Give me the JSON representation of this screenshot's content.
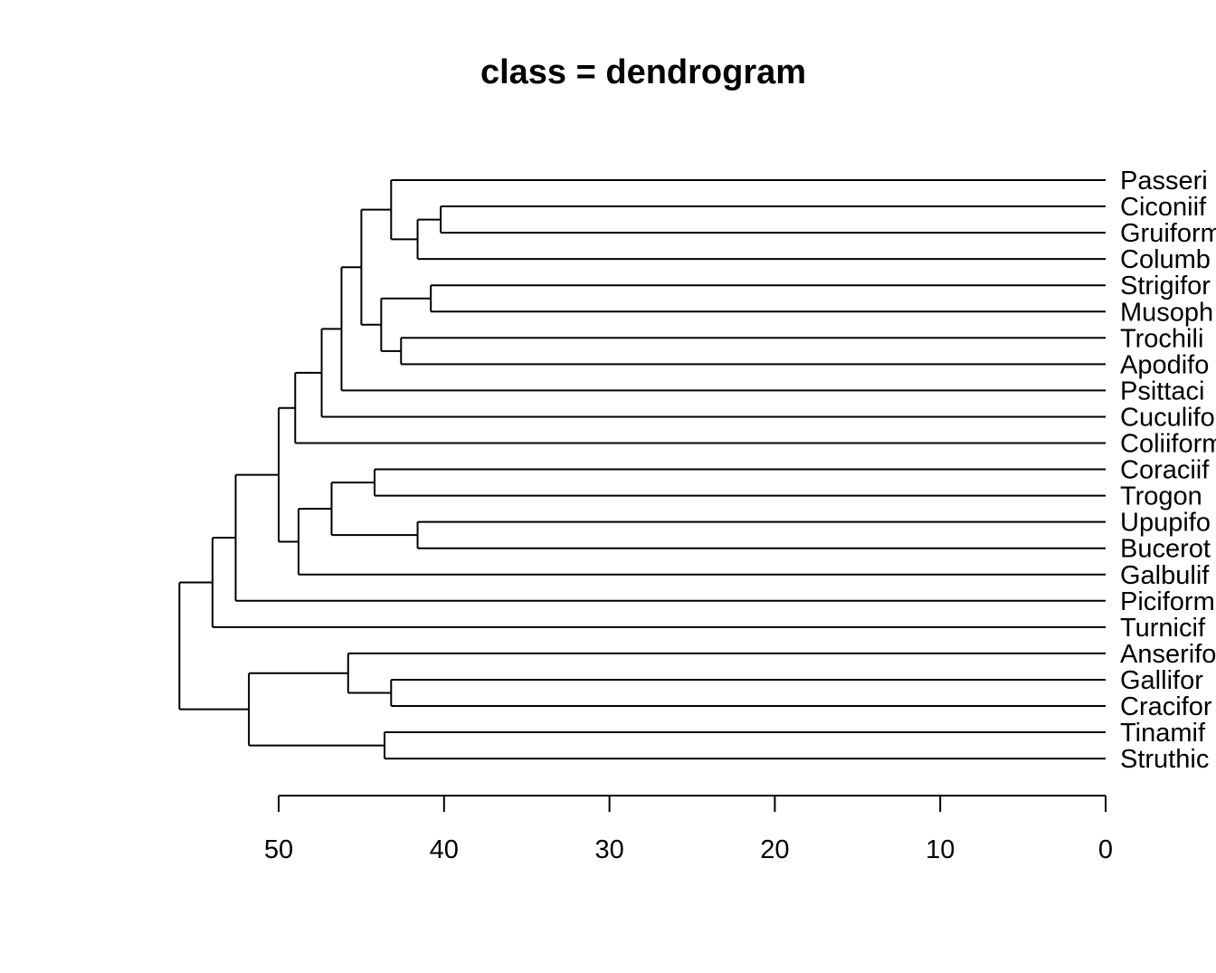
{
  "chart_data": {
    "type": "dendrogram",
    "title": "class = dendrogram",
    "orientation": "horizontal",
    "xlim": [
      50,
      0
    ],
    "x_ticks": [
      50,
      40,
      30,
      20,
      10,
      0
    ],
    "leaves": [
      "Passeri",
      "Ciconiif",
      "Gruiform",
      "Columb",
      "Strigifor",
      "Musoph",
      "Trochili",
      "Apodifo",
      "Psittaci",
      "Cuculifo",
      "Coliiform",
      "Coraciif",
      "Trogon",
      "Upupifo",
      "Bucerot",
      "Galbulif",
      "Piciform",
      "Turnicif",
      "Anserifo",
      "Gallifor",
      "Cracifor",
      "Tinamif",
      "Struthic"
    ],
    "merges": [
      {
        "id": "n1",
        "height": 40.2,
        "children": [
          "Ciconiif",
          "Gruiform"
        ]
      },
      {
        "id": "n2",
        "height": 41.6,
        "children": [
          "n1",
          "Columb"
        ]
      },
      {
        "id": "n3",
        "height": 43.2,
        "children": [
          "Passeri",
          "n2"
        ]
      },
      {
        "id": "n4",
        "height": 40.8,
        "children": [
          "Strigifor",
          "Musoph"
        ]
      },
      {
        "id": "n5",
        "height": 42.6,
        "children": [
          "Trochili",
          "Apodifo"
        ]
      },
      {
        "id": "n6",
        "height": 43.8,
        "children": [
          "n4",
          "n5"
        ]
      },
      {
        "id": "n7",
        "height": 45.0,
        "children": [
          "n3",
          "n6"
        ]
      },
      {
        "id": "n8",
        "height": 46.2,
        "children": [
          "n7",
          "Psittaci"
        ]
      },
      {
        "id": "n9",
        "height": 47.4,
        "children": [
          "n8",
          "Cuculifo"
        ]
      },
      {
        "id": "n10",
        "height": 49.0,
        "children": [
          "n9",
          "Coliiform"
        ]
      },
      {
        "id": "n11",
        "height": 44.2,
        "children": [
          "Coraciif",
          "Trogon"
        ]
      },
      {
        "id": "n12",
        "height": 41.6,
        "children": [
          "Upupifo",
          "Bucerot"
        ]
      },
      {
        "id": "n13",
        "height": 46.8,
        "children": [
          "n11",
          "n12"
        ]
      },
      {
        "id": "n14",
        "height": 48.8,
        "children": [
          "n13",
          "Galbulif"
        ]
      },
      {
        "id": "n15",
        "height": 50.0,
        "children": [
          "n10",
          "n14"
        ]
      },
      {
        "id": "n16",
        "height": 52.6,
        "children": [
          "n15",
          "Piciform"
        ]
      },
      {
        "id": "n17",
        "height": 54.0,
        "children": [
          "n16",
          "Turnicif"
        ]
      },
      {
        "id": "n18",
        "height": 43.2,
        "children": [
          "Gallifor",
          "Cracifor"
        ]
      },
      {
        "id": "n19",
        "height": 45.8,
        "children": [
          "Anserifo",
          "n18"
        ]
      },
      {
        "id": "n20",
        "height": 43.6,
        "children": [
          "Tinamif",
          "Struthic"
        ]
      },
      {
        "id": "n21",
        "height": 51.8,
        "children": [
          "n19",
          "n20"
        ]
      },
      {
        "id": "n22",
        "height": 56.0,
        "children": [
          "n17",
          "n21"
        ]
      }
    ]
  }
}
